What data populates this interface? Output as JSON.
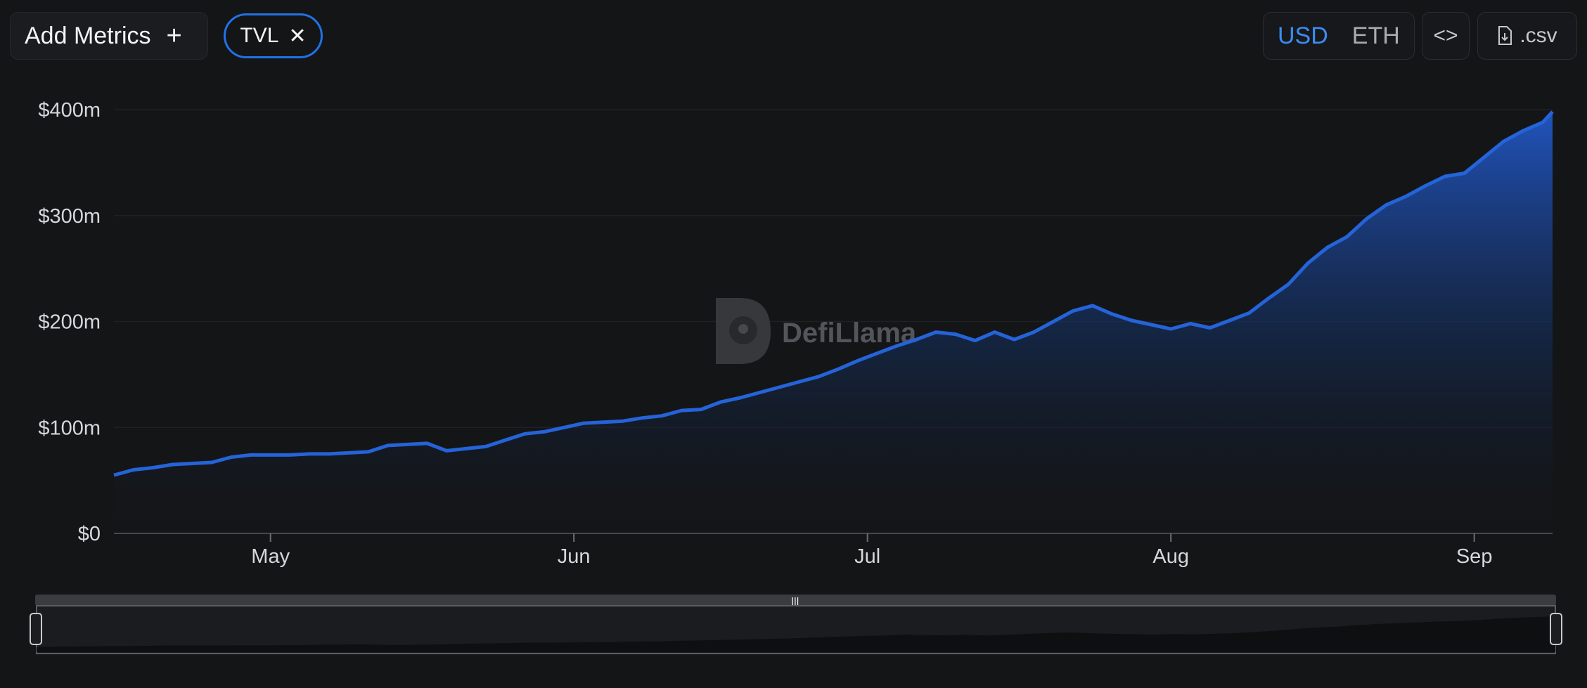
{
  "toolbar": {
    "add_metrics_label": "Add Metrics",
    "plus_icon": "+",
    "chip_label": "TVL",
    "chip_close": "✕",
    "usd_label": "USD",
    "eth_label": "ETH",
    "embed_icon": "<>",
    "csv_label": ".csv"
  },
  "watermark": "DefiLlama",
  "colors": {
    "accent": "#2172e5",
    "line": "#2563d8",
    "background": "#141517"
  },
  "chart_data": {
    "type": "area",
    "title": "",
    "xlabel": "",
    "ylabel": "",
    "ylim": [
      0,
      400
    ],
    "xlim": [
      "2024-04-15",
      "2024-09-09"
    ],
    "y_tick_labels": [
      "$0",
      "$100m",
      "$200m",
      "$300m",
      "$400m"
    ],
    "y_tick_values": [
      0,
      100,
      200,
      300,
      400
    ],
    "x_tick_labels": [
      "May",
      "Jun",
      "Jul",
      "Aug",
      "Sep"
    ],
    "x_tick_values": [
      "2024-05-01",
      "2024-06-01",
      "2024-07-01",
      "2024-08-01",
      "2024-09-01"
    ],
    "grid": true,
    "series": [
      {
        "name": "TVL",
        "units": "USD millions",
        "x": [
          "2024-04-15",
          "2024-04-17",
          "2024-04-19",
          "2024-04-21",
          "2024-04-23",
          "2024-04-25",
          "2024-04-27",
          "2024-04-29",
          "2024-05-01",
          "2024-05-03",
          "2024-05-05",
          "2024-05-07",
          "2024-05-09",
          "2024-05-11",
          "2024-05-13",
          "2024-05-15",
          "2024-05-17",
          "2024-05-19",
          "2024-05-21",
          "2024-05-23",
          "2024-05-25",
          "2024-05-27",
          "2024-05-29",
          "2024-05-31",
          "2024-06-02",
          "2024-06-04",
          "2024-06-06",
          "2024-06-08",
          "2024-06-10",
          "2024-06-12",
          "2024-06-14",
          "2024-06-16",
          "2024-06-18",
          "2024-06-20",
          "2024-06-22",
          "2024-06-24",
          "2024-06-26",
          "2024-06-28",
          "2024-06-30",
          "2024-07-02",
          "2024-07-04",
          "2024-07-06",
          "2024-07-08",
          "2024-07-10",
          "2024-07-12",
          "2024-07-14",
          "2024-07-16",
          "2024-07-18",
          "2024-07-20",
          "2024-07-22",
          "2024-07-24",
          "2024-07-26",
          "2024-07-28",
          "2024-07-30",
          "2024-08-01",
          "2024-08-03",
          "2024-08-05",
          "2024-08-07",
          "2024-08-09",
          "2024-08-11",
          "2024-08-13",
          "2024-08-15",
          "2024-08-17",
          "2024-08-19",
          "2024-08-21",
          "2024-08-23",
          "2024-08-25",
          "2024-08-27",
          "2024-08-29",
          "2024-08-31",
          "2024-09-02",
          "2024-09-04",
          "2024-09-06",
          "2024-09-08",
          "2024-09-09"
        ],
        "values": [
          55,
          60,
          62,
          65,
          66,
          67,
          72,
          74,
          74,
          74,
          75,
          75,
          76,
          77,
          83,
          84,
          85,
          78,
          80,
          82,
          88,
          94,
          96,
          100,
          104,
          105,
          106,
          109,
          111,
          116,
          117,
          124,
          128,
          133,
          138,
          143,
          148,
          155,
          163,
          170,
          177,
          183,
          190,
          188,
          182,
          190,
          183,
          190,
          200,
          210,
          215,
          207,
          201,
          197,
          193,
          198,
          194,
          201,
          208,
          222,
          235,
          255,
          270,
          280,
          297,
          310,
          318,
          328,
          337,
          340,
          355,
          370,
          380,
          388,
          398
        ]
      }
    ]
  }
}
